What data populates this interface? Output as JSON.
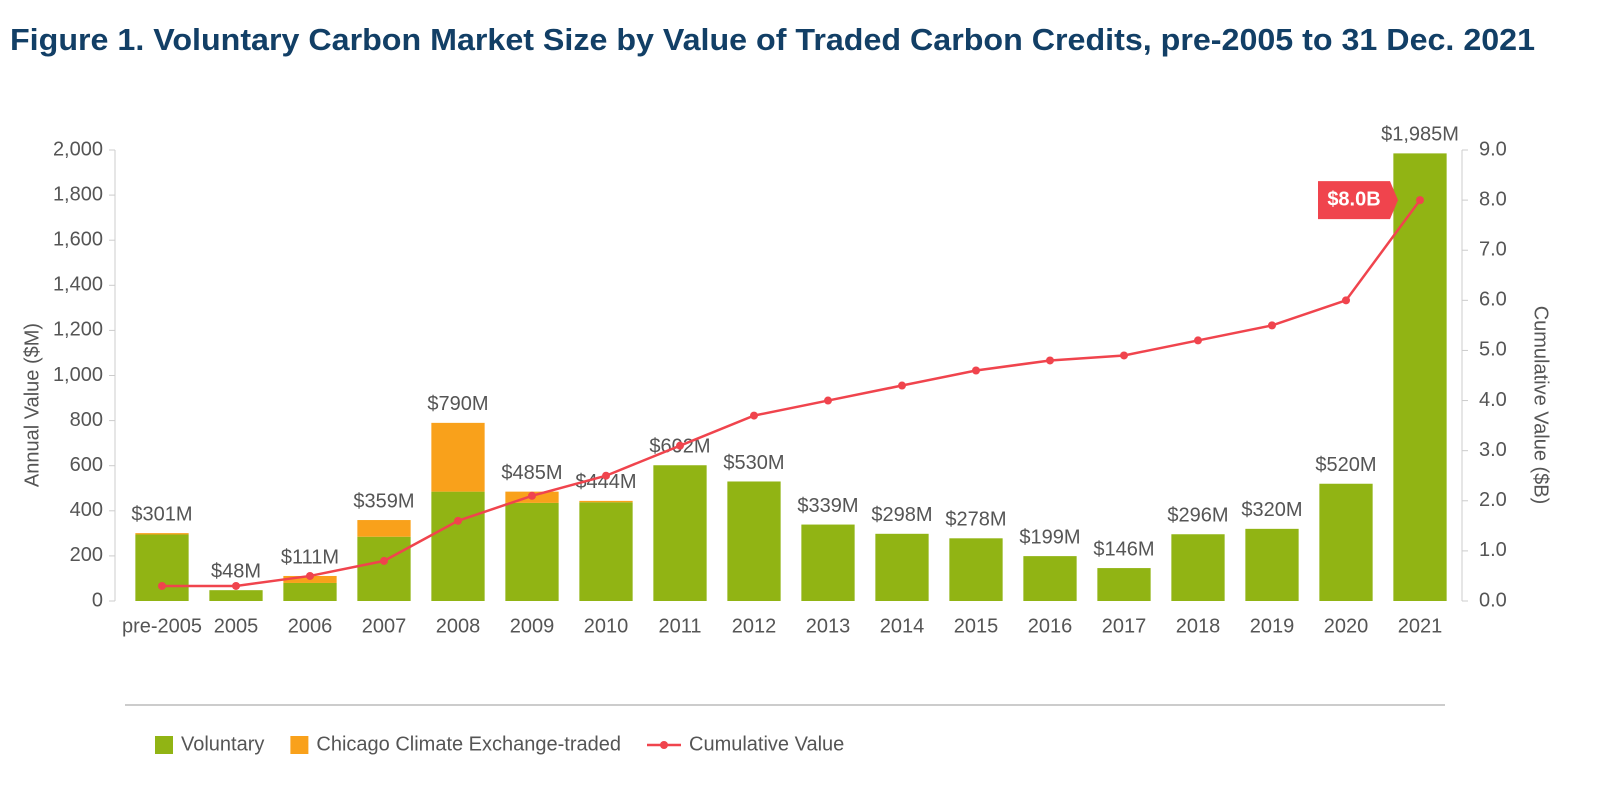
{
  "chart_data": {
    "type": "bar",
    "title": "Figure 1. Voluntary Carbon Market Size by Value of Traded Carbon Credits, pre-2005 to 31 Dec. 2021",
    "ylabel": "Annual Value ($M)",
    "y2label": "Cumulative Value ($B)",
    "categories": [
      "pre-2005",
      "2005",
      "2006",
      "2007",
      "2008",
      "2009",
      "2010",
      "2011",
      "2012",
      "2013",
      "2014",
      "2015",
      "2016",
      "2017",
      "2018",
      "2019",
      "2020",
      "2021"
    ],
    "series": [
      {
        "name": "Voluntary",
        "color": "#91b414",
        "values": [
          295,
          48,
          80,
          285,
          485,
          435,
          438,
          602,
          530,
          339,
          298,
          278,
          199,
          146,
          296,
          320,
          520,
          1985
        ]
      },
      {
        "name": "Chicago Climate Exchange-traded",
        "color": "#f9a11b",
        "values": [
          6,
          0,
          31,
          74,
          305,
          50,
          6,
          0,
          0,
          0,
          0,
          0,
          0,
          0,
          0,
          0,
          0,
          0
        ]
      },
      {
        "name": "Cumulative Value",
        "color": "#f0444d",
        "axis": "y2",
        "values": [
          0.3,
          0.3,
          0.5,
          0.8,
          1.6,
          2.1,
          2.5,
          3.1,
          3.7,
          4.0,
          4.3,
          4.6,
          4.8,
          4.9,
          5.2,
          5.5,
          6.0,
          8.0
        ]
      }
    ],
    "totals": [
      301,
      48,
      111,
      359,
      790,
      485,
      444,
      602,
      530,
      339,
      298,
      278,
      199,
      146,
      296,
      320,
      520,
      1985
    ],
    "total_labels": [
      "$301M",
      "$48M",
      "$111M",
      "$359M",
      "$790M",
      "$485M",
      "$444M",
      "$602M",
      "$530M",
      "$339M",
      "$298M",
      "$278M",
      "$199M",
      "$146M",
      "$296M",
      "$320M",
      "$520M",
      "$1,985M"
    ],
    "annotation": "$8.0B",
    "ylim": [
      0,
      2000
    ],
    "yticks": [
      0,
      200,
      400,
      600,
      800,
      {
        "value": 1000,
        "label": "1,000"
      },
      {
        "value": 1200,
        "label": "1,200"
      },
      {
        "value": 1400,
        "label": "1,400"
      },
      {
        "value": 1600,
        "label": "1,600"
      },
      {
        "value": 1800,
        "label": "1,800"
      },
      {
        "value": 2000,
        "label": "2,000"
      }
    ],
    "y2lim": [
      0,
      9
    ],
    "y2ticks": [
      {
        "value": 0,
        "label": "0.0"
      },
      {
        "value": 1,
        "label": "1.0"
      },
      {
        "value": 2,
        "label": "2.0"
      },
      {
        "value": 3,
        "label": "3.0"
      },
      {
        "value": 4,
        "label": "4.0"
      },
      {
        "value": 5,
        "label": "5.0"
      },
      {
        "value": 6,
        "label": "6.0"
      },
      {
        "value": 7,
        "label": "7.0"
      },
      {
        "value": 8,
        "label": "8.0"
      },
      {
        "value": 9,
        "label": "9.0"
      }
    ],
    "legend": "bottom"
  }
}
